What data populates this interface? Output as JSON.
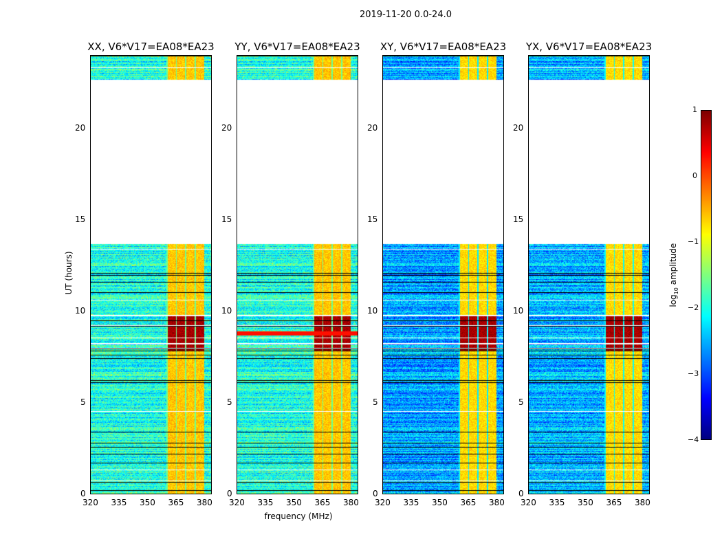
{
  "chart_data": {
    "type": "heatmap",
    "title": "2019-11-20 0.0-24.0",
    "xlabel": "frequency (MHz)",
    "ylabel": "UT (hours)",
    "xlim": [
      320,
      384
    ],
    "ylim": [
      0,
      24
    ],
    "xticks": [
      "320",
      "335",
      "350",
      "365",
      "380"
    ],
    "yticks": [
      "0",
      "5",
      "10",
      "15",
      "20"
    ],
    "colorbar": {
      "label": "log10 amplitude",
      "label_main": "log",
      "label_sub": "10",
      "label_rest": " amplitude",
      "range": [
        -4,
        1
      ],
      "ticks": [
        "1",
        "0",
        "−1",
        "−2",
        "−3",
        "−4"
      ],
      "colormap": "jet"
    },
    "panels": [
      {
        "title": "XX, V6*V17=EA08*EA23",
        "base_level": -2.0,
        "rfi_band_level": -0.6
      },
      {
        "title": "YY, V6*V17=EA08*EA23",
        "base_level": -2.0,
        "rfi_band_level": -0.6
      },
      {
        "title": "XY, V6*V17=EA08*EA23",
        "base_level": -2.6,
        "rfi_band_level": -0.7
      },
      {
        "title": "YX, V6*V17=EA08*EA23",
        "base_level": -2.5,
        "rfi_band_level": -0.7
      }
    ],
    "no_data_interval_hours": [
      13.7,
      22.7
    ],
    "rfi_band_mhz": [
      360,
      380
    ],
    "strong_rfi_hours": [
      7.8,
      9.8
    ]
  }
}
